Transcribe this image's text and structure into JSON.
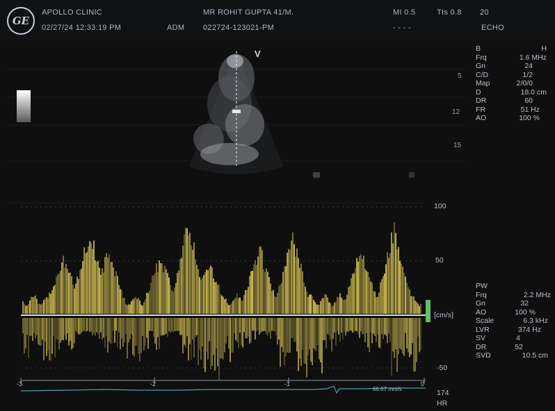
{
  "header": {
    "logo_text": "GE",
    "clinic": "APOLLO CLINIC",
    "datetime": "02/27/24 12:33:19 PM",
    "adm_label": "ADM",
    "patient": "MR ROHIT GUPTA 41/M.",
    "exam_id": "022724-123021-PM",
    "mi": "MI 0.5",
    "tis": "TIs 0.8",
    "tis_value": "20",
    "dashes": "- - - -",
    "mode": "ECHO"
  },
  "bmode": {
    "marker": "V",
    "params": [
      {
        "k": "B",
        "v": "H"
      },
      {
        "k": "Frq",
        "v": "1.6 MHz"
      },
      {
        "k": "Gn",
        "v": "24"
      },
      {
        "k": "C/D",
        "v": "1/2"
      },
      {
        "k": "Map",
        "v": "2/0/0"
      },
      {
        "k": "D",
        "v": "18.0 cm"
      },
      {
        "k": "DR",
        "v": "60"
      },
      {
        "k": "FR",
        "v": "51 Hz"
      },
      {
        "k": "AO",
        "v": "100 %"
      }
    ],
    "depth_marks": [
      "5",
      "12",
      "15"
    ]
  },
  "doppler": {
    "scale_labels": [
      "100",
      "50",
      "[cm/s]",
      "-50"
    ],
    "time_labels": [
      "-3",
      "-2",
      "-1",
      "0"
    ],
    "speed": "66.67 mm/s",
    "params": [
      {
        "k": "PW",
        "v": ""
      },
      {
        "k": "Frq",
        "v": "2.2 MHz"
      },
      {
        "k": "Gn",
        "v": "32"
      },
      {
        "k": "AO",
        "v": "100 %"
      },
      {
        "k": "Scale",
        "v": "6.3 kHz"
      },
      {
        "k": "LVR",
        "v": "374 Hz"
      },
      {
        "k": "SV",
        "v": "4"
      },
      {
        "k": "DR",
        "v": "52"
      },
      {
        "k": "SVD",
        "v": "10.5 cm"
      }
    ],
    "hr_value": "174",
    "hr_label": "HR"
  },
  "colors": {
    "spectrum": "#e8d25a",
    "baseline": "#d9dde3",
    "ecg": "#4f9fa8",
    "green_marker": "#5fbf6a"
  }
}
